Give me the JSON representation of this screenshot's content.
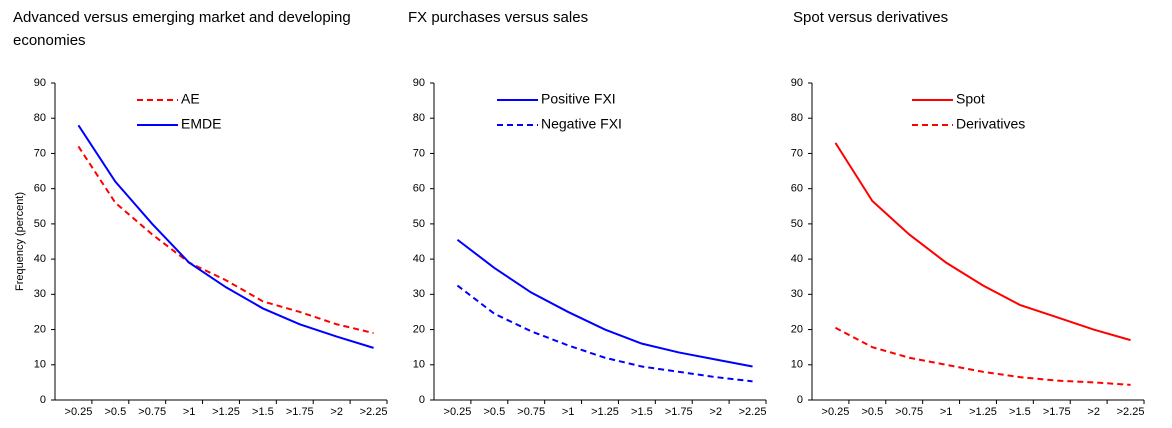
{
  "chart_data": [
    {
      "type": "line",
      "title": "Advanced versus emerging market and developing economies",
      "y_label": "Frequency (percent)",
      "categories": [
        ">0.25",
        ">0.5",
        ">0.75",
        ">1",
        ">1.25",
        ">1.5",
        ">1.75",
        ">2",
        ">2.25"
      ],
      "ylim": [
        0,
        90
      ],
      "yticks": [
        0,
        10,
        20,
        30,
        40,
        50,
        60,
        70,
        80,
        90
      ],
      "series": [
        {
          "name": "AE",
          "color": "#ff0000",
          "dash": "dashed",
          "values": [
            72,
            56,
            47,
            39,
            34,
            28,
            25,
            21.5,
            19
          ]
        },
        {
          "name": "EMDE",
          "color": "#0000ff",
          "dash": "solid",
          "values": [
            78,
            62,
            50,
            39,
            32,
            26,
            21.5,
            18,
            14.8
          ]
        }
      ]
    },
    {
      "type": "line",
      "title": "FX purchases versus sales",
      "categories": [
        ">0.25",
        ">0.5",
        ">0.75",
        ">1",
        ">1.25",
        ">1.5",
        ">1.75",
        ">2",
        ">2.25"
      ],
      "ylim": [
        0,
        90
      ],
      "yticks": [
        0,
        10,
        20,
        30,
        40,
        50,
        60,
        70,
        80,
        90
      ],
      "series": [
        {
          "name": "Positive FXI",
          "color": "#0000ff",
          "dash": "solid",
          "values": [
            45.5,
            37.5,
            30.5,
            25,
            20,
            16,
            13.5,
            11.5,
            9.5
          ]
        },
        {
          "name": "Negative FXI",
          "color": "#0000ff",
          "dash": "dashed",
          "values": [
            32.5,
            24.5,
            19.5,
            15.5,
            12,
            9.5,
            8,
            6.5,
            5.3
          ]
        }
      ]
    },
    {
      "type": "line",
      "title": "Spot versus derivatives",
      "categories": [
        ">0.25",
        ">0.5",
        ">0.75",
        ">1",
        ">1.25",
        ">1.5",
        ">1.75",
        ">2",
        ">2.25"
      ],
      "ylim": [
        0,
        90
      ],
      "yticks": [
        0,
        10,
        20,
        30,
        40,
        50,
        60,
        70,
        80,
        90
      ],
      "series": [
        {
          "name": "Spot",
          "color": "#ff0000",
          "dash": "solid",
          "values": [
            73,
            56.5,
            47,
            39,
            32.5,
            27,
            23.5,
            20,
            17
          ]
        },
        {
          "name": "Derivatives",
          "color": "#ff0000",
          "dash": "dashed",
          "values": [
            20.5,
            15,
            12,
            10,
            8,
            6.5,
            5.5,
            5,
            4.3
          ]
        }
      ]
    }
  ]
}
